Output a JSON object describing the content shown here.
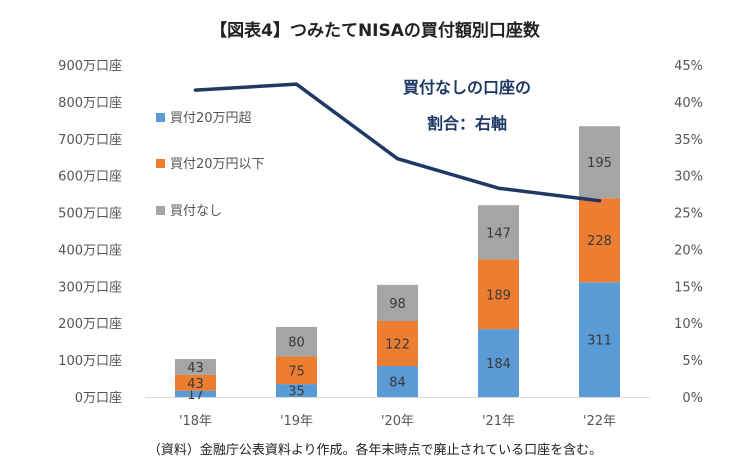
{
  "chart_data": {
    "type": "bar",
    "stacked": true,
    "title": "【図表4】つみたてNISAの買付額別口座数",
    "categories": [
      "'18年",
      "'19年",
      "'20年",
      "'21年",
      "'22年"
    ],
    "series": [
      {
        "name": "買付20万円超",
        "color": "#5b9bd5",
        "values": [
          17,
          35,
          84,
          184,
          311
        ]
      },
      {
        "name": "買付20万円以下",
        "color": "#ed7d31",
        "values": [
          43,
          75,
          122,
          189,
          228
        ]
      },
      {
        "name": "買付なし",
        "color": "#a5a5a5",
        "values": [
          43,
          80,
          98,
          147,
          195
        ]
      }
    ],
    "line_series": {
      "name": "買付なしの口座の割合",
      "axis": "right",
      "color": "#1f3864",
      "values": [
        41.6,
        42.4,
        32.3,
        28.3,
        26.6
      ]
    },
    "ylim": [
      0,
      900
    ],
    "yticks": [
      {
        "value": 0,
        "label": "0万口座"
      },
      {
        "value": 100,
        "label": "100万口座"
      },
      {
        "value": 200,
        "label": "200万口座"
      },
      {
        "value": 300,
        "label": "300万口座"
      },
      {
        "value": 400,
        "label": "400万口座"
      },
      {
        "value": 500,
        "label": "500万口座"
      },
      {
        "value": 600,
        "label": "600万口座"
      },
      {
        "value": 700,
        "label": "700万口座"
      },
      {
        "value": 800,
        "label": "800万口座"
      },
      {
        "value": 900,
        "label": "900万口座"
      }
    ],
    "y2lim": [
      0,
      45
    ],
    "y2ticks": [
      {
        "value": 0,
        "label": "0%"
      },
      {
        "value": 5,
        "label": "5%"
      },
      {
        "value": 10,
        "label": "10%"
      },
      {
        "value": 15,
        "label": "15%"
      },
      {
        "value": 20,
        "label": "20%"
      },
      {
        "value": 25,
        "label": "25%"
      },
      {
        "value": 30,
        "label": "30%"
      },
      {
        "value": 35,
        "label": "35%"
      },
      {
        "value": 40,
        "label": "40%"
      },
      {
        "value": 45,
        "label": "45%"
      }
    ],
    "annotation": {
      "line1": "買付なしの口座の",
      "line2": "割合：右軸"
    },
    "legend_position": "top-left",
    "note": "（資料）金融庁公表資料より作成。各年末時点で廃止されている口座を含む。"
  }
}
